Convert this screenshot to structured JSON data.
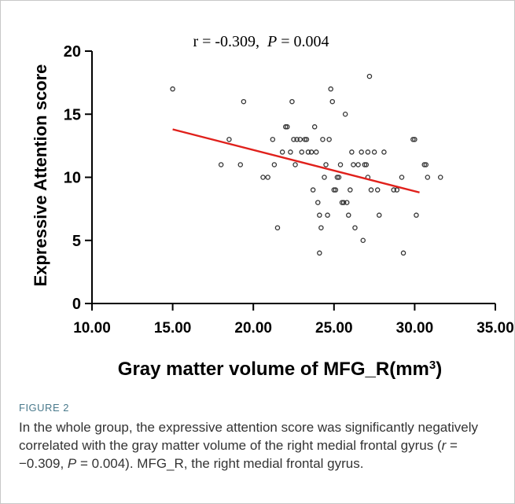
{
  "figure": {
    "label": "FIGURE 2",
    "caption_parts": [
      {
        "text": "In the whole group, the expressive attention score was significantly negatively correlated with the gray matter volume of the right medial frontal gyrus (",
        "style": "normal"
      },
      {
        "text": "r",
        "style": "italic"
      },
      {
        "text": " = −0.309, ",
        "style": "normal"
      },
      {
        "text": "P",
        "style": "italic"
      },
      {
        "text": " = 0.004). MFG_R, the right medial frontal gyrus.",
        "style": "normal"
      }
    ]
  },
  "chart_data": {
    "type": "scatter",
    "annotation": {
      "r_part": "r = -0.309,",
      "p_label": "P",
      "p_part": " = 0.004"
    },
    "xlabel": "Gray matter volume of MFG_R",
    "xlabel_unit": "(mm",
    "xlabel_unit_exp": "3",
    "xlabel_unit_end": ")",
    "ylabel": "Expressive Attention score",
    "xlim": [
      10,
      35
    ],
    "ylim": [
      0,
      20
    ],
    "x_ticks": [
      10,
      15,
      20,
      25,
      30,
      35
    ],
    "x_tick_labels": [
      "10.00",
      "15.00",
      "20.00",
      "25.00",
      "30.00",
      "35.00"
    ],
    "y_ticks": [
      0,
      5,
      10,
      15,
      20
    ],
    "y_tick_labels": [
      "0",
      "5",
      "10",
      "15",
      "20"
    ],
    "grid": false,
    "colors": {
      "points": "#333333",
      "fit_line": "#e0201b",
      "axis": "#000000"
    },
    "fit_line": {
      "x": [
        15.0,
        30.3
      ],
      "y": [
        13.8,
        8.8
      ]
    },
    "points": [
      {
        "x": 15.0,
        "y": 17
      },
      {
        "x": 18.0,
        "y": 11
      },
      {
        "x": 18.5,
        "y": 13
      },
      {
        "x": 19.2,
        "y": 11
      },
      {
        "x": 19.4,
        "y": 16
      },
      {
        "x": 20.6,
        "y": 10
      },
      {
        "x": 20.9,
        "y": 10
      },
      {
        "x": 21.2,
        "y": 13
      },
      {
        "x": 21.3,
        "y": 11
      },
      {
        "x": 21.5,
        "y": 6
      },
      {
        "x": 21.8,
        "y": 12
      },
      {
        "x": 22.0,
        "y": 14
      },
      {
        "x": 22.1,
        "y": 14
      },
      {
        "x": 22.3,
        "y": 12
      },
      {
        "x": 22.4,
        "y": 16
      },
      {
        "x": 22.5,
        "y": 13
      },
      {
        "x": 22.6,
        "y": 11
      },
      {
        "x": 22.7,
        "y": 13
      },
      {
        "x": 22.9,
        "y": 13
      },
      {
        "x": 23.0,
        "y": 12
      },
      {
        "x": 23.2,
        "y": 13
      },
      {
        "x": 23.3,
        "y": 13
      },
      {
        "x": 23.4,
        "y": 12
      },
      {
        "x": 23.6,
        "y": 12
      },
      {
        "x": 23.7,
        "y": 9
      },
      {
        "x": 23.8,
        "y": 14
      },
      {
        "x": 23.9,
        "y": 12
      },
      {
        "x": 24.0,
        "y": 8
      },
      {
        "x": 24.1,
        "y": 7
      },
      {
        "x": 24.2,
        "y": 6
      },
      {
        "x": 24.1,
        "y": 4
      },
      {
        "x": 24.3,
        "y": 13
      },
      {
        "x": 24.4,
        "y": 10
      },
      {
        "x": 24.5,
        "y": 11
      },
      {
        "x": 24.6,
        "y": 7
      },
      {
        "x": 24.7,
        "y": 13
      },
      {
        "x": 24.8,
        "y": 17
      },
      {
        "x": 24.9,
        "y": 16
      },
      {
        "x": 25.0,
        "y": 9
      },
      {
        "x": 25.1,
        "y": 9
      },
      {
        "x": 25.2,
        "y": 10
      },
      {
        "x": 25.3,
        "y": 10
      },
      {
        "x": 25.4,
        "y": 11
      },
      {
        "x": 25.5,
        "y": 8
      },
      {
        "x": 25.6,
        "y": 8
      },
      {
        "x": 25.7,
        "y": 15
      },
      {
        "x": 25.8,
        "y": 8
      },
      {
        "x": 25.9,
        "y": 7
      },
      {
        "x": 26.0,
        "y": 9
      },
      {
        "x": 26.1,
        "y": 12
      },
      {
        "x": 26.2,
        "y": 11
      },
      {
        "x": 26.3,
        "y": 6
      },
      {
        "x": 26.5,
        "y": 11
      },
      {
        "x": 26.7,
        "y": 12
      },
      {
        "x": 26.8,
        "y": 5
      },
      {
        "x": 26.9,
        "y": 11
      },
      {
        "x": 27.0,
        "y": 11
      },
      {
        "x": 27.1,
        "y": 12
      },
      {
        "x": 27.1,
        "y": 10
      },
      {
        "x": 27.2,
        "y": 18
      },
      {
        "x": 27.3,
        "y": 9
      },
      {
        "x": 27.5,
        "y": 12
      },
      {
        "x": 27.7,
        "y": 9
      },
      {
        "x": 27.8,
        "y": 7
      },
      {
        "x": 28.1,
        "y": 12
      },
      {
        "x": 28.7,
        "y": 9
      },
      {
        "x": 28.9,
        "y": 9
      },
      {
        "x": 29.2,
        "y": 10
      },
      {
        "x": 29.3,
        "y": 4
      },
      {
        "x": 29.9,
        "y": 13
      },
      {
        "x": 30.0,
        "y": 13
      },
      {
        "x": 30.1,
        "y": 7
      },
      {
        "x": 30.6,
        "y": 11
      },
      {
        "x": 30.7,
        "y": 11
      },
      {
        "x": 30.8,
        "y": 10
      },
      {
        "x": 31.6,
        "y": 10
      }
    ]
  }
}
